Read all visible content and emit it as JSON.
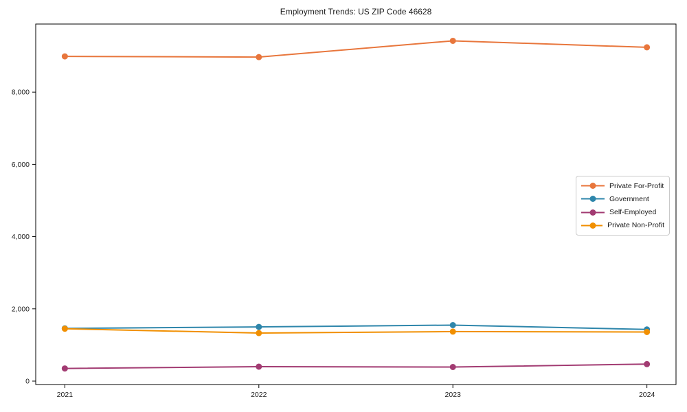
{
  "chart_data": {
    "type": "line",
    "title": "Employment Trends: US ZIP Code 46628",
    "x": [
      2021,
      2022,
      2023,
      2024
    ],
    "x_tick_labels": [
      "2021",
      "2022",
      "2023",
      "2024"
    ],
    "series": [
      {
        "name": "Private For-Profit",
        "color": "#E8763C",
        "values": [
          8990,
          8970,
          9420,
          9240
        ]
      },
      {
        "name": "Government",
        "color": "#2E86AB",
        "values": [
          1460,
          1500,
          1550,
          1430
        ]
      },
      {
        "name": "Self-Employed",
        "color": "#A23B72",
        "values": [
          350,
          400,
          390,
          470
        ]
      },
      {
        "name": "Private Non-Profit",
        "color": "#F18F01",
        "values": [
          1450,
          1330,
          1370,
          1360
        ]
      }
    ],
    "y_ticks": [
      0,
      2000,
      4000,
      6000,
      8000
    ],
    "y_tick_labels": [
      "0",
      "2,000",
      "4,000",
      "6,000",
      "8,000"
    ],
    "ylim": [
      -95,
      9885
    ],
    "xlim": [
      2020.85,
      2024.15
    ],
    "grid": false,
    "legend_position": "center-right",
    "marker": "circle",
    "axis_color": "#000000",
    "text_color": "#1a1a1a"
  }
}
